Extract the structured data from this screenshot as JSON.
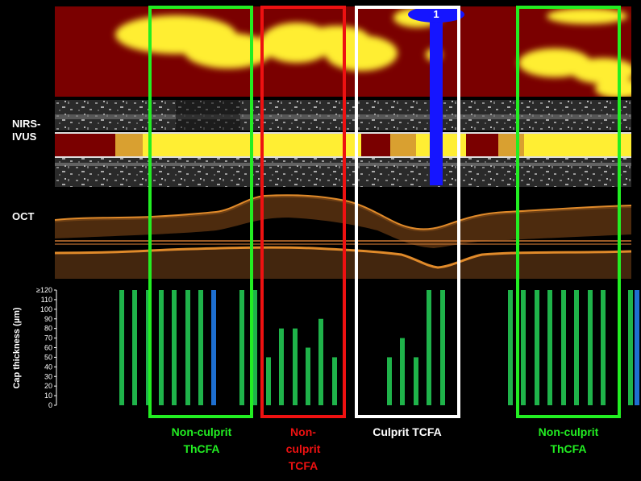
{
  "labels": {
    "nirs_ivus": "NIRS-\nIVUS",
    "oct": "OCT",
    "y_axis": "Cap thickness (µm)",
    "blue_marker": "1"
  },
  "regions": [
    {
      "label": "Non-culprit ThCFA",
      "lines": [
        "Non-culprit",
        "ThCFA"
      ],
      "color": "#22ee22"
    },
    {
      "label": "Non-culprit TCFA",
      "lines": [
        "Non-",
        "culprit",
        "TCFA"
      ],
      "color": "#ee1111"
    },
    {
      "label": "Culprit TCFA",
      "lines": [
        "Culprit TCFA"
      ],
      "color": "#ffffff"
    },
    {
      "label": "Non-culprit ThCFA",
      "lines": [
        "Non-culprit",
        "ThCFA"
      ],
      "color": "#22ee22"
    }
  ],
  "colors": {
    "chemogram_bg": "#7a0000",
    "lipid": "#ffee33",
    "bar_green": "#1fb34a",
    "bar_blue": "#1e6fd0",
    "marker_blue": "#1515ff"
  },
  "chart_data": {
    "type": "bar",
    "ylabel": "Cap thickness (µm)",
    "ylim": [
      0,
      120
    ],
    "yticks": [
      "0",
      "10",
      "20",
      "30",
      "40",
      "50",
      "60",
      "70",
      "80",
      "90",
      "100",
      "110",
      "≥120"
    ],
    "series": [
      {
        "values": [
          120,
          120,
          120,
          120,
          120,
          120,
          120,
          120,
          120,
          120,
          50,
          80,
          80,
          60,
          90,
          50,
          50,
          70,
          50,
          120,
          120,
          120,
          120,
          120,
          120,
          120,
          120,
          120,
          120,
          120,
          120,
          120
        ]
      }
    ],
    "bar_colors": [
      "g",
      "g",
      "g",
      "g",
      "g",
      "g",
      "g",
      "b",
      "g",
      "g",
      "g",
      "g",
      "g",
      "g",
      "g",
      "g",
      "g",
      "g",
      "g",
      "g",
      "g",
      "g",
      "g",
      "g",
      "g",
      "g",
      "g",
      "g",
      "g",
      "g",
      "b",
      "g"
    ]
  }
}
